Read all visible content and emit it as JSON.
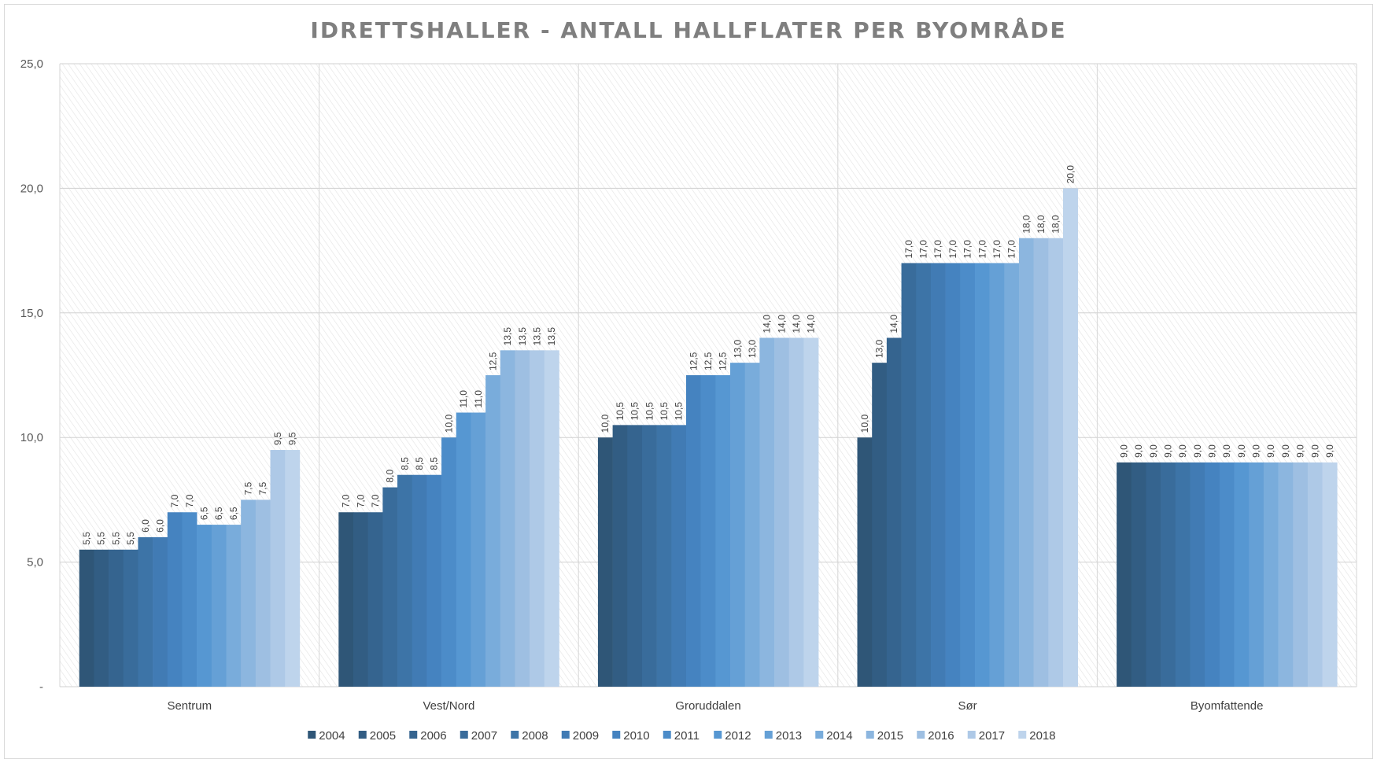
{
  "chart_data": {
    "type": "bar",
    "title": "IDRETTSHALLER - ANTALL HALLFLATER PER BYOMRÅDE",
    "xlabel": "",
    "ylabel": "",
    "ylim": [
      0,
      25
    ],
    "yticks": [
      {
        "value": 0,
        "label": "-"
      },
      {
        "value": 5,
        "label": "5,0"
      },
      {
        "value": 10,
        "label": "10,0"
      },
      {
        "value": 15,
        "label": "15,0"
      },
      {
        "value": 20,
        "label": "20,0"
      },
      {
        "value": 25,
        "label": "25,0"
      }
    ],
    "grid": true,
    "legend_position": "bottom",
    "categories": [
      "Sentrum",
      "Vest/Nord",
      "Groruddalen",
      "Sør",
      "Byomfattende"
    ],
    "series": [
      {
        "name": "2004",
        "color": "#2f5677",
        "values": [
          5.5,
          7.0,
          10.0,
          10.0,
          9.0
        ]
      },
      {
        "name": "2005",
        "color": "#325d83",
        "values": [
          5.5,
          7.0,
          10.5,
          13.0,
          9.0
        ]
      },
      {
        "name": "2006",
        "color": "#35648f",
        "values": [
          5.5,
          7.0,
          10.5,
          14.0,
          9.0
        ]
      },
      {
        "name": "2007",
        "color": "#396c9b",
        "values": [
          5.5,
          8.0,
          10.5,
          17.0,
          9.0
        ]
      },
      {
        "name": "2008",
        "color": "#3d74a7",
        "values": [
          6.0,
          8.5,
          10.5,
          17.0,
          9.0
        ]
      },
      {
        "name": "2009",
        "color": "#417bb4",
        "values": [
          6.0,
          8.5,
          10.5,
          17.0,
          9.0
        ]
      },
      {
        "name": "2010",
        "color": "#4583c0",
        "values": [
          7.0,
          8.5,
          12.5,
          17.0,
          9.0
        ]
      },
      {
        "name": "2011",
        "color": "#4c8cc9",
        "values": [
          7.0,
          10.0,
          12.5,
          17.0,
          9.0
        ]
      },
      {
        "name": "2012",
        "color": "#5697d2",
        "values": [
          6.5,
          11.0,
          12.5,
          17.0,
          9.0
        ]
      },
      {
        "name": "2013",
        "color": "#65a0d6",
        "values": [
          6.5,
          11.0,
          13.0,
          17.0,
          9.0
        ]
      },
      {
        "name": "2014",
        "color": "#79acdb",
        "values": [
          6.5,
          12.5,
          13.0,
          17.0,
          9.0
        ]
      },
      {
        "name": "2015",
        "color": "#8cb6df",
        "values": [
          7.5,
          13.5,
          14.0,
          18.0,
          9.0
        ]
      },
      {
        "name": "2016",
        "color": "#9ebfe2",
        "values": [
          7.5,
          13.5,
          14.0,
          18.0,
          9.0
        ]
      },
      {
        "name": "2017",
        "color": "#aec9e7",
        "values": [
          9.5,
          13.5,
          14.0,
          18.0,
          9.0
        ]
      },
      {
        "name": "2018",
        "color": "#bed4ec",
        "values": [
          9.5,
          13.5,
          14.0,
          20.0,
          9.0
        ]
      }
    ]
  }
}
